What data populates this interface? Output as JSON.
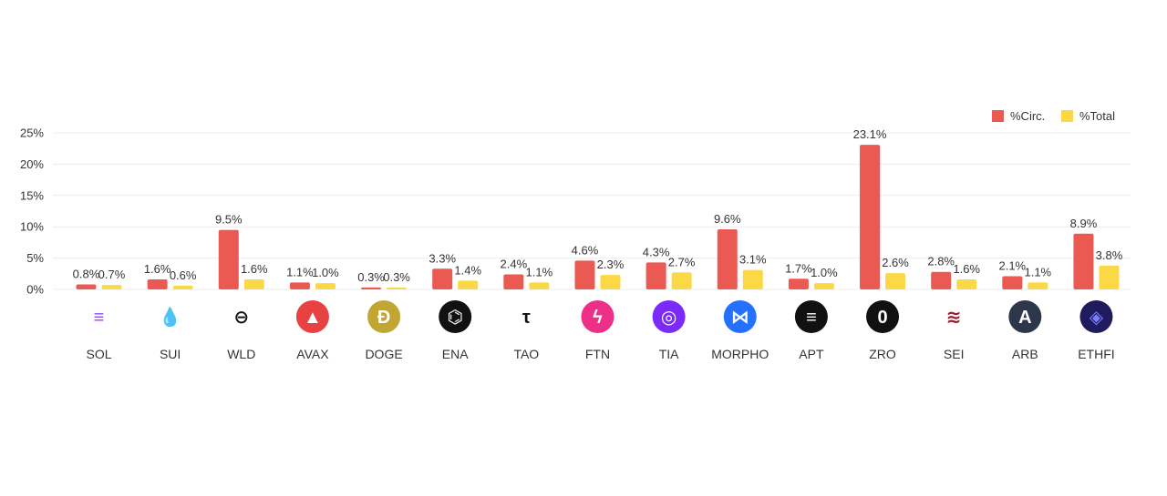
{
  "chart_data": {
    "type": "bar",
    "categories": [
      "SOL",
      "SUI",
      "WLD",
      "AVAX",
      "DOGE",
      "ENA",
      "TAO",
      "FTN",
      "TIA",
      "MORPHO",
      "APT",
      "ZRO",
      "SEI",
      "ARB",
      "ETHFI"
    ],
    "series": [
      {
        "name": "%Circ.",
        "color": "#eb5a52",
        "values": [
          0.8,
          1.6,
          9.5,
          1.1,
          0.3,
          3.3,
          2.4,
          4.6,
          4.3,
          9.6,
          1.7,
          23.1,
          2.8,
          2.1,
          8.9
        ],
        "labels": [
          "0.8%",
          "1.6%",
          "9.5%",
          "1.1%",
          "0.3%",
          "3.3%",
          "2.4%",
          "4.6%",
          "4.3%",
          "9.6%",
          "1.7%",
          "23.1%",
          "2.8%",
          "2.1%",
          "8.9%"
        ]
      },
      {
        "name": "%Total",
        "color": "#fbd845",
        "values": [
          0.7,
          0.6,
          1.6,
          1.0,
          0.3,
          1.4,
          1.1,
          2.3,
          2.7,
          3.1,
          1.0,
          2.6,
          1.6,
          1.1,
          3.8
        ],
        "labels": [
          "0.7%",
          "0.6%",
          "1.6%",
          "1.0%",
          "0.3%",
          "1.4%",
          "1.1%",
          "2.3%",
          "2.7%",
          "3.1%",
          "1.0%",
          "2.6%",
          "1.6%",
          "1.1%",
          "3.8%"
        ]
      }
    ],
    "ylim": [
      0,
      25
    ],
    "yticks": [
      0,
      5,
      10,
      15,
      20,
      25
    ],
    "ytick_labels": [
      "0%",
      "5%",
      "10%",
      "15%",
      "20%",
      "25%"
    ],
    "legend_position": "top-right",
    "grid": true,
    "title": "",
    "xlabel": "",
    "ylabel": ""
  },
  "icons": [
    {
      "name": "sol-icon",
      "bg": "#ffffff",
      "fg": "#9945ff",
      "glyph": "≡"
    },
    {
      "name": "sui-icon",
      "bg": "#ffffff",
      "fg": "#4da2ff",
      "glyph": "💧"
    },
    {
      "name": "wld-icon",
      "bg": "#ffffff",
      "fg": "#111111",
      "glyph": "⊖"
    },
    {
      "name": "avax-icon",
      "bg": "#e84142",
      "fg": "#ffffff",
      "glyph": "▲"
    },
    {
      "name": "doge-icon",
      "bg": "#c2a633",
      "fg": "#ffffff",
      "glyph": "Ð"
    },
    {
      "name": "ena-icon",
      "bg": "#111111",
      "fg": "#ffffff",
      "glyph": "⌬"
    },
    {
      "name": "tao-icon",
      "bg": "#ffffff",
      "fg": "#111111",
      "glyph": "τ"
    },
    {
      "name": "ftn-icon",
      "bg": "#ec2f87",
      "fg": "#ffffff",
      "glyph": "ϟ"
    },
    {
      "name": "tia-icon",
      "bg": "#7b2bf9",
      "fg": "#ffffff",
      "glyph": "◎"
    },
    {
      "name": "morpho-icon",
      "bg": "#2470ff",
      "fg": "#ffffff",
      "glyph": "⋈"
    },
    {
      "name": "apt-icon",
      "bg": "#111111",
      "fg": "#ffffff",
      "glyph": "≡"
    },
    {
      "name": "zro-icon",
      "bg": "#111111",
      "fg": "#ffffff",
      "glyph": "0"
    },
    {
      "name": "sei-icon",
      "bg": "#ffffff",
      "fg": "#9b1c2e",
      "glyph": "≋"
    },
    {
      "name": "arb-icon",
      "bg": "#2d374b",
      "fg": "#ffffff",
      "glyph": "A"
    },
    {
      "name": "ethfi-icon",
      "bg": "#1f1b5c",
      "fg": "#7f7dff",
      "glyph": "◈"
    }
  ]
}
